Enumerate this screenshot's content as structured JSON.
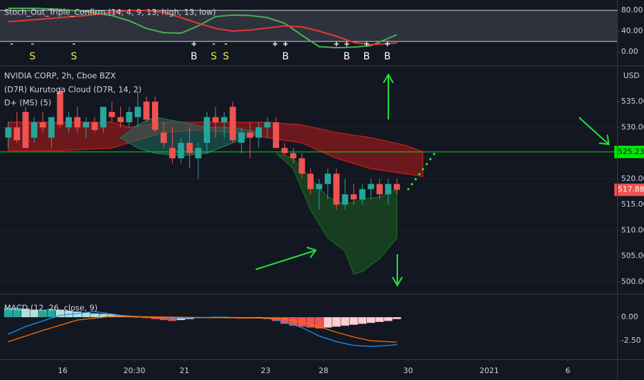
{
  "chart_data": [
    {
      "type": "line",
      "title": "Stoch_Out_Triple_Confirm (14, 4, 9, 13, high, 13, low)",
      "xlim": [
        -0.96,
        70.5
      ],
      "ylim": [
        -26.7,
        97.3
      ],
      "yticks": [
        {
          "value": 80,
          "label": "80.00"
        },
        {
          "value": 40,
          "label": "40.00"
        },
        {
          "value": 0,
          "label": "0.00"
        }
      ],
      "bands": [
        20,
        80
      ],
      "series": [
        {
          "color": "#4caf50",
          "x": [
            0,
            3,
            6,
            9,
            12,
            14,
            16,
            18,
            20,
            22,
            24,
            26,
            28,
            30,
            32,
            34,
            36,
            38,
            40,
            42,
            44,
            45
          ],
          "values": [
            84,
            84,
            82,
            78,
            70,
            60,
            45,
            37,
            36,
            50,
            68,
            71,
            70,
            66,
            55,
            32,
            10,
            8,
            9,
            12,
            26,
            33
          ]
        },
        {
          "color": "#e53935",
          "x": [
            0,
            3,
            6,
            9,
            12,
            14,
            16,
            18,
            20,
            22,
            24,
            26,
            28,
            30,
            32,
            34,
            36,
            38,
            40,
            42,
            44,
            45
          ],
          "values": [
            58,
            62,
            66,
            70,
            76,
            80,
            80,
            76,
            66,
            55,
            45,
            40,
            42,
            46,
            50,
            48,
            40,
            30,
            18,
            14,
            16,
            17
          ]
        }
      ],
      "markers": [
        {
          "x": 0.4,
          "symbol": "-",
          "color": "#ffeb3b"
        },
        {
          "x": 2.8,
          "symbol": "-",
          "label": "S",
          "color": "#ffeb3b"
        },
        {
          "x": 7.6,
          "symbol": "-",
          "label": "S",
          "color": "#ffeb3b"
        },
        {
          "x": 21.5,
          "symbol": "+",
          "label": "B",
          "color": "#ffffff"
        },
        {
          "x": 23.8,
          "symbol": "-",
          "label": "S",
          "color": "#ffeb3b"
        },
        {
          "x": 25.2,
          "symbol": "-",
          "label": "S",
          "color": "#ffeb3b"
        },
        {
          "x": 30.9,
          "symbol": "+",
          "color": "#ffffff"
        },
        {
          "x": 32.1,
          "symbol": "+",
          "label": "B",
          "color": "#ffffff"
        },
        {
          "x": 38.0,
          "symbol": "+",
          "color": "#ffffff"
        },
        {
          "x": 39.2,
          "symbol": "+",
          "label": "B",
          "color": "#ffffff"
        },
        {
          "x": 41.5,
          "symbol": "+",
          "label": "B",
          "color": "#ffffff"
        },
        {
          "x": 43.9,
          "symbol": "+",
          "label": "B",
          "color": "#ffffff"
        }
      ]
    },
    {
      "type": "candlestick",
      "title": "NVIDIA CORP, 2h, Cboe BZX",
      "indicators": [
        "(D7R) Kurutoga Cloud (D7R, 14, 2)",
        "D+ (MS) (5)"
      ],
      "y_unit": "USD",
      "xlim": [
        -0.96,
        70.5
      ],
      "ylim": [
        497.7,
        542
      ],
      "grid": true,
      "yticks": [
        {
          "value": 500,
          "label": "500.00"
        },
        {
          "value": 505,
          "label": "505.00"
        },
        {
          "value": 510,
          "label": "510.00"
        },
        {
          "value": 515,
          "label": "515.00"
        },
        {
          "value": 520,
          "label": "520.00"
        },
        {
          "value": 530,
          "label": "530.00"
        },
        {
          "value": 535,
          "label": "535.00"
        }
      ],
      "up_color": "#26a69a",
      "down_color": "#ef5350",
      "open": [
        528,
        530,
        533,
        528,
        531,
        528,
        537,
        530,
        532,
        530,
        531,
        530,
        533,
        532,
        531,
        532,
        535,
        535,
        529,
        526,
        524,
        527,
        524,
        527,
        532,
        531,
        534,
        527,
        529,
        528,
        530,
        531,
        526,
        525,
        524,
        521,
        518,
        519,
        521,
        515,
        517,
        516,
        518,
        519,
        517,
        519
      ],
      "high": [
        531,
        533,
        534,
        532,
        533,
        532,
        538,
        533,
        534,
        532,
        532,
        534,
        535,
        534,
        534,
        537,
        536,
        536,
        531,
        530,
        528,
        530,
        527,
        533,
        534,
        533,
        535,
        530,
        531,
        531,
        532,
        532,
        527,
        526,
        525,
        522,
        520,
        522,
        522,
        520,
        519,
        519,
        520,
        520,
        520,
        520
      ],
      "low": [
        526,
        527,
        526,
        527,
        529,
        526,
        530,
        529,
        529,
        528,
        529,
        529,
        531,
        530,
        530,
        530,
        531,
        529,
        526,
        523,
        523,
        522,
        520,
        525,
        528,
        528,
        527,
        525,
        524,
        526,
        528,
        526,
        524.5,
        523,
        520,
        517,
        514,
        516,
        514,
        514,
        515,
        515,
        516,
        516,
        515,
        517
      ],
      "close": [
        530,
        527.5,
        526,
        531,
        530,
        532,
        530.5,
        532,
        530,
        531,
        529.5,
        534,
        532,
        531,
        533,
        534,
        531.5,
        529.5,
        527,
        524,
        527,
        525,
        526,
        532,
        531,
        532,
        527.5,
        529,
        528,
        530,
        531,
        526,
        525,
        524,
        521,
        518,
        519,
        521,
        515,
        517,
        516,
        518,
        519,
        517,
        519,
        517.88
      ],
      "clouds": [
        {
          "color": "#b71c1c",
          "x": [
            0,
            6,
            12,
            14,
            18,
            22,
            26,
            30,
            34,
            38,
            42,
            46,
            48
          ],
          "upper": [
            531,
            531,
            531,
            530,
            531,
            531,
            531,
            531,
            530.5,
            529,
            528,
            526.5,
            525.3
          ],
          "lower": [
            525.5,
            525.5,
            526,
            527,
            529,
            529.5,
            529,
            528,
            527,
            524,
            522,
            521,
            520.5
          ]
        },
        {
          "color": "#1e6b5e",
          "x": [
            13,
            15,
            17,
            20,
            23,
            26,
            29
          ],
          "upper": [
            528,
            530.5,
            532,
            531,
            530,
            530,
            529
          ],
          "lower": [
            528,
            526,
            525,
            524.5,
            525,
            527,
            529
          ]
        },
        {
          "color": "#1b5e20",
          "x": [
            31,
            33,
            35,
            37,
            39,
            40,
            41,
            43,
            45
          ],
          "upper": [
            525,
            524,
            520,
            516.5,
            515,
            515.5,
            516,
            516.5,
            518
          ],
          "lower": [
            525,
            522,
            514,
            508.5,
            506,
            501.5,
            502,
            504.5,
            508.5
          ]
        }
      ],
      "hline": {
        "value": 525.23,
        "color": "#00e600"
      }
    },
    {
      "type": "macd",
      "title": "MACD (12, 26, close, 9)",
      "xlim": [
        -0.96,
        70.5
      ],
      "ylim": [
        -4.32,
        2.5
      ],
      "yticks": [
        {
          "value": 0,
          "label": "0.00"
        },
        {
          "value": -2.5,
          "label": "-2.50"
        }
      ],
      "histogram": [
        1.0,
        1.0,
        0.9,
        0.8,
        0.8,
        0.9,
        0.8,
        0.7,
        0.6,
        0.5,
        0.4,
        0.35,
        0.3,
        0.2,
        0.1,
        0.05,
        -0.1,
        -0.2,
        -0.3,
        -0.4,
        -0.3,
        -0.2,
        -0.1,
        -0.05,
        0.05,
        0.05,
        -0.1,
        -0.15,
        -0.1,
        -0.05,
        -0.2,
        -0.4,
        -0.7,
        -0.9,
        -1.0,
        -1.1,
        -1.2,
        -1.1,
        -1.0,
        -0.9,
        -0.8,
        -0.7,
        -0.6,
        -0.5,
        -0.4,
        -0.2
      ],
      "histogram_colors": [
        "#26a69a",
        "#b2dfdb",
        "#ef5350",
        "#ffcdd2"
      ],
      "series": [
        {
          "color": "#2196f3",
          "x": [
            0,
            2,
            6,
            10,
            13,
            16,
            20,
            24,
            28,
            30,
            32,
            34,
            36,
            38,
            40,
            42,
            44,
            45
          ],
          "values": [
            -1.8,
            -1.0,
            0.2,
            0.6,
            0.2,
            0,
            -0.1,
            0,
            -0.05,
            -0.1,
            -0.5,
            -1.1,
            -2.0,
            -2.6,
            -3.0,
            -3.1,
            -3.0,
            -2.9
          ]
        },
        {
          "color": "#ff6d00",
          "x": [
            0,
            4,
            8,
            12,
            16,
            20,
            24,
            30,
            32,
            34,
            36,
            38,
            40,
            42,
            44,
            45
          ],
          "values": [
            -2.6,
            -1.4,
            -0.3,
            0.1,
            0.05,
            0,
            -0.05,
            -0.1,
            -0.2,
            -0.5,
            -1.0,
            -1.6,
            -2.1,
            -2.5,
            -2.6,
            -2.65
          ]
        }
      ],
      "xticks": [
        {
          "value": 6.3,
          "label": "16"
        },
        {
          "value": 14.6,
          "label": "20:30"
        },
        {
          "value": 20.4,
          "label": "21"
        },
        {
          "value": 29.8,
          "label": "23"
        },
        {
          "value": 36.5,
          "label": "28"
        },
        {
          "value": 46.3,
          "label": "30"
        },
        {
          "value": 55.7,
          "label": "2021"
        },
        {
          "value": 64.8,
          "label": "6"
        }
      ]
    }
  ]
}
